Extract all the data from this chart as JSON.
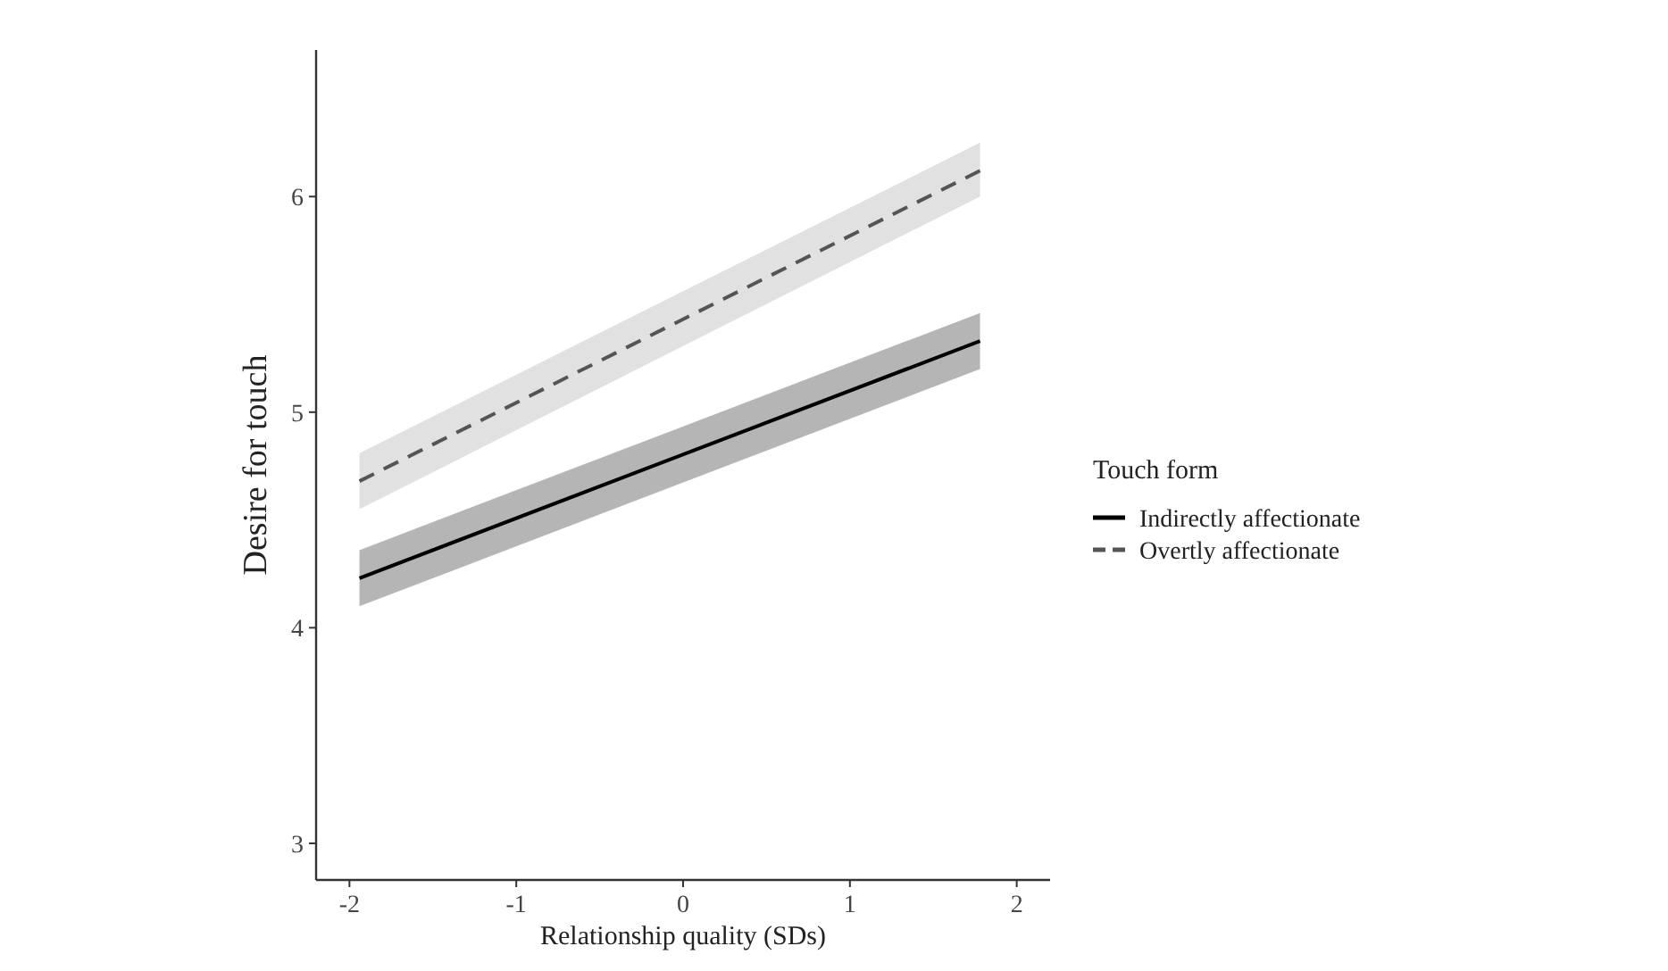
{
  "chart_data": {
    "type": "line",
    "xlabel": "Relationship quality (SDs)",
    "ylabel": "Desire for touch",
    "legend_title": "Touch form",
    "legend": "right",
    "grid": false,
    "marker": "none",
    "xlim": [
      -2.2,
      2.2
    ],
    "xticks": [
      -2,
      -1,
      0,
      1,
      2
    ],
    "ylim": [
      2.83,
      6.68
    ],
    "yticks": [
      3,
      4,
      5,
      6
    ],
    "x": [
      -1.94,
      1.78
    ],
    "series": [
      {
        "name": "Indirectly affectionate",
        "color": "#000000",
        "line_style": "solid",
        "values": [
          4.23,
          5.33
        ],
        "lower": [
          4.1,
          5.2
        ],
        "upper": [
          4.36,
          5.46
        ]
      },
      {
        "name": "Overtly affectionate",
        "color": "#555555",
        "line_style": "dashed",
        "values": [
          4.68,
          6.12
        ],
        "lower": [
          4.55,
          6.0
        ],
        "upper": [
          4.81,
          6.25
        ]
      }
    ]
  }
}
